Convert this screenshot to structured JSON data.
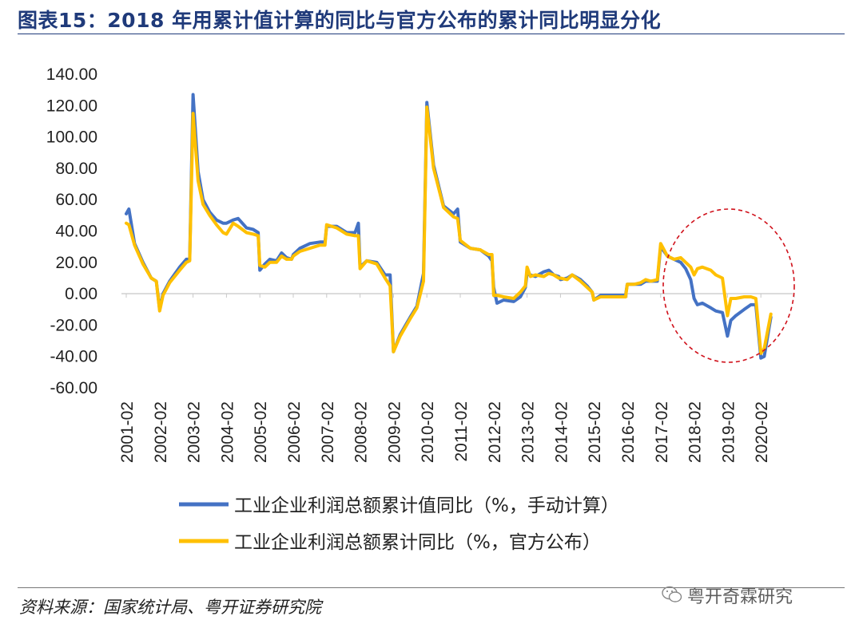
{
  "title": "图表15：2018 年用累计值计算的同比与官方公布的累计同比明显分化",
  "source": "资料来源：国家统计局、粤开证券研究院",
  "watermark": "粤开奇霖研究",
  "colors": {
    "series1": "#4472c4",
    "series2": "#ffc000",
    "title": "#1f3a7a",
    "annotation": "#d0111b"
  },
  "chart_data": {
    "type": "line",
    "ylim": [
      -60,
      140
    ],
    "yticks": [
      "140.00",
      "120.00",
      "100.00",
      "80.00",
      "60.00",
      "40.00",
      "20.00",
      "0.00",
      "-20.00",
      "-40.00",
      "-60.00"
    ],
    "xticks": [
      "2001-02",
      "2002-02",
      "2003-02",
      "2004-02",
      "2005-02",
      "2006-02",
      "2007-02",
      "2008-02",
      "2009-02",
      "2010-02",
      "2011-02",
      "2012-02",
      "2013-02",
      "2014-02",
      "2015-02",
      "2016-02",
      "2017-02",
      "2018-02",
      "2019-02",
      "2020-02"
    ],
    "legend_position": "bottom",
    "annotation": "red dashed ellipse around 2017-2020",
    "series": [
      {
        "name": "工业企业利润总额累计值同比（%，手动计算）",
        "color": "#4472c4",
        "points": [
          [
            2001.0,
            51
          ],
          [
            2001.08,
            54
          ],
          [
            2001.25,
            32
          ],
          [
            2001.5,
            20
          ],
          [
            2001.75,
            10
          ],
          [
            2001.9,
            8
          ],
          [
            2002.0,
            -10
          ],
          [
            2002.1,
            0
          ],
          [
            2002.3,
            8
          ],
          [
            2002.6,
            17
          ],
          [
            2002.8,
            22
          ],
          [
            2002.9,
            22
          ],
          [
            2003.0,
            127
          ],
          [
            2003.15,
            78
          ],
          [
            2003.3,
            60
          ],
          [
            2003.5,
            52
          ],
          [
            2003.7,
            47
          ],
          [
            2003.9,
            45
          ],
          [
            2004.0,
            45
          ],
          [
            2004.2,
            47
          ],
          [
            2004.35,
            48
          ],
          [
            2004.6,
            42
          ],
          [
            2004.8,
            41
          ],
          [
            2004.95,
            39
          ],
          [
            2005.0,
            15
          ],
          [
            2005.15,
            19
          ],
          [
            2005.3,
            22
          ],
          [
            2005.5,
            21
          ],
          [
            2005.65,
            26
          ],
          [
            2005.8,
            23
          ],
          [
            2005.95,
            22
          ],
          [
            2006.0,
            25
          ],
          [
            2006.2,
            29
          ],
          [
            2006.5,
            32
          ],
          [
            2006.8,
            33
          ],
          [
            2006.95,
            33
          ],
          [
            2007.0,
            43
          ],
          [
            2007.3,
            43
          ],
          [
            2007.6,
            39
          ],
          [
            2007.85,
            39
          ],
          [
            2007.95,
            45
          ],
          [
            2008.0,
            17
          ],
          [
            2008.2,
            21
          ],
          [
            2008.5,
            20
          ],
          [
            2008.75,
            12
          ],
          [
            2008.9,
            12
          ],
          [
            2009.0,
            -37
          ],
          [
            2009.2,
            -26
          ],
          [
            2009.5,
            -15
          ],
          [
            2009.7,
            -8
          ],
          [
            2009.9,
            13
          ],
          [
            2010.0,
            122
          ],
          [
            2010.2,
            82
          ],
          [
            2010.5,
            56
          ],
          [
            2010.8,
            51
          ],
          [
            2010.92,
            54
          ],
          [
            2011.0,
            33
          ],
          [
            2011.3,
            29
          ],
          [
            2011.6,
            28
          ],
          [
            2011.85,
            24
          ],
          [
            2011.95,
            21
          ],
          [
            2012.0,
            4
          ],
          [
            2012.1,
            -6
          ],
          [
            2012.3,
            -4
          ],
          [
            2012.6,
            -5
          ],
          [
            2012.8,
            -2
          ],
          [
            2012.95,
            4
          ],
          [
            2013.0,
            13
          ],
          [
            2013.1,
            12
          ],
          [
            2013.25,
            11
          ],
          [
            2013.5,
            14
          ],
          [
            2013.65,
            15
          ],
          [
            2013.8,
            12
          ],
          [
            2013.95,
            11
          ],
          [
            2014.0,
            9
          ],
          [
            2014.2,
            10
          ],
          [
            2014.35,
            12
          ],
          [
            2014.6,
            9
          ],
          [
            2014.8,
            5
          ],
          [
            2014.95,
            1
          ],
          [
            2015.0,
            -4
          ],
          [
            2015.2,
            -1
          ],
          [
            2015.4,
            -1
          ],
          [
            2015.6,
            -1
          ],
          [
            2015.8,
            -1
          ],
          [
            2015.95,
            -1
          ],
          [
            2016.0,
            6
          ],
          [
            2016.2,
            6
          ],
          [
            2016.4,
            6
          ],
          [
            2016.55,
            8
          ],
          [
            2016.7,
            8
          ],
          [
            2016.9,
            8
          ],
          [
            2017.0,
            30
          ],
          [
            2017.2,
            24
          ],
          [
            2017.4,
            22
          ],
          [
            2017.6,
            20
          ],
          [
            2017.75,
            16
          ],
          [
            2017.9,
            9
          ],
          [
            2018.0,
            -3
          ],
          [
            2018.1,
            -7
          ],
          [
            2018.25,
            -6
          ],
          [
            2018.5,
            -9
          ],
          [
            2018.65,
            -11
          ],
          [
            2018.85,
            -12
          ],
          [
            2019.0,
            -27
          ],
          [
            2019.1,
            -17
          ],
          [
            2019.25,
            -14
          ],
          [
            2019.5,
            -10
          ],
          [
            2019.7,
            -7
          ],
          [
            2019.85,
            -7
          ],
          [
            2020.0,
            -41
          ],
          [
            2020.1,
            -40
          ],
          [
            2020.3,
            -15
          ]
        ]
      },
      {
        "name": "工业企业利润总额累计同比（%，官方公布）",
        "color": "#ffc000",
        "points": [
          [
            2001.0,
            45
          ],
          [
            2001.08,
            44
          ],
          [
            2001.25,
            31
          ],
          [
            2001.5,
            19
          ],
          [
            2001.75,
            10
          ],
          [
            2001.9,
            8
          ],
          [
            2002.0,
            -11
          ],
          [
            2002.1,
            -1
          ],
          [
            2002.3,
            7
          ],
          [
            2002.6,
            15
          ],
          [
            2002.8,
            20
          ],
          [
            2002.9,
            21
          ],
          [
            2003.0,
            115
          ],
          [
            2003.15,
            72
          ],
          [
            2003.3,
            57
          ],
          [
            2003.5,
            50
          ],
          [
            2003.7,
            44
          ],
          [
            2003.9,
            39
          ],
          [
            2004.0,
            38
          ],
          [
            2004.2,
            45
          ],
          [
            2004.35,
            43
          ],
          [
            2004.6,
            39
          ],
          [
            2004.8,
            38
          ],
          [
            2004.95,
            37
          ],
          [
            2005.0,
            18
          ],
          [
            2005.15,
            17
          ],
          [
            2005.3,
            20
          ],
          [
            2005.5,
            20
          ],
          [
            2005.65,
            24
          ],
          [
            2005.8,
            22
          ],
          [
            2005.95,
            22
          ],
          [
            2006.0,
            24
          ],
          [
            2006.2,
            27
          ],
          [
            2006.5,
            29
          ],
          [
            2006.8,
            31
          ],
          [
            2006.95,
            31
          ],
          [
            2007.0,
            44
          ],
          [
            2007.3,
            42
          ],
          [
            2007.6,
            38
          ],
          [
            2007.85,
            37
          ],
          [
            2007.95,
            37
          ],
          [
            2008.0,
            16
          ],
          [
            2008.2,
            21
          ],
          [
            2008.5,
            19
          ],
          [
            2008.75,
            10
          ],
          [
            2008.9,
            5
          ],
          [
            2009.0,
            -37
          ],
          [
            2009.2,
            -27
          ],
          [
            2009.5,
            -16
          ],
          [
            2009.7,
            -9
          ],
          [
            2009.9,
            8
          ],
          [
            2010.0,
            119
          ],
          [
            2010.2,
            80
          ],
          [
            2010.5,
            55
          ],
          [
            2010.8,
            49
          ],
          [
            2010.92,
            48
          ],
          [
            2011.0,
            34
          ],
          [
            2011.3,
            29
          ],
          [
            2011.6,
            28
          ],
          [
            2011.85,
            25
          ],
          [
            2011.95,
            25
          ],
          [
            2012.0,
            -1
          ],
          [
            2012.1,
            -1
          ],
          [
            2012.3,
            -2
          ],
          [
            2012.6,
            -3
          ],
          [
            2012.8,
            1
          ],
          [
            2012.95,
            5
          ],
          [
            2013.0,
            17
          ],
          [
            2013.1,
            11
          ],
          [
            2013.25,
            12
          ],
          [
            2013.5,
            11
          ],
          [
            2013.65,
            13
          ],
          [
            2013.8,
            12
          ],
          [
            2013.95,
            10
          ],
          [
            2014.0,
            10
          ],
          [
            2014.2,
            9
          ],
          [
            2014.35,
            12
          ],
          [
            2014.6,
            8
          ],
          [
            2014.8,
            4
          ],
          [
            2014.95,
            1
          ],
          [
            2015.0,
            -4
          ],
          [
            2015.2,
            -2
          ],
          [
            2015.4,
            -2
          ],
          [
            2015.6,
            -2
          ],
          [
            2015.8,
            -2
          ],
          [
            2015.95,
            -2
          ],
          [
            2016.0,
            6
          ],
          [
            2016.2,
            6
          ],
          [
            2016.4,
            7
          ],
          [
            2016.55,
            9
          ],
          [
            2016.7,
            8
          ],
          [
            2016.9,
            9
          ],
          [
            2017.0,
            32
          ],
          [
            2017.2,
            24
          ],
          [
            2017.4,
            22
          ],
          [
            2017.6,
            23
          ],
          [
            2017.75,
            20
          ],
          [
            2017.9,
            17
          ],
          [
            2018.0,
            12
          ],
          [
            2018.1,
            16
          ],
          [
            2018.25,
            17
          ],
          [
            2018.5,
            15
          ],
          [
            2018.65,
            12
          ],
          [
            2018.85,
            10
          ],
          [
            2019.0,
            -14
          ],
          [
            2019.1,
            -3
          ],
          [
            2019.25,
            -3
          ],
          [
            2019.5,
            -2
          ],
          [
            2019.7,
            -2
          ],
          [
            2019.85,
            -3
          ],
          [
            2020.0,
            -38
          ],
          [
            2020.1,
            -35
          ],
          [
            2020.3,
            -13
          ]
        ]
      }
    ]
  }
}
